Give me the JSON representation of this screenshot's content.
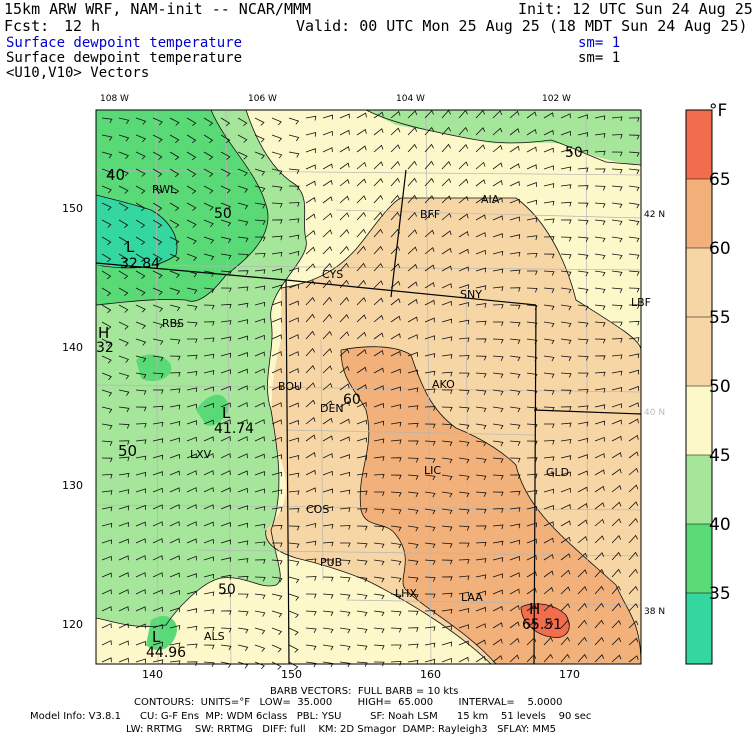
{
  "header": {
    "model": "15km ARW WRF, NAM-init -- NCAR/MMM",
    "init": "Init: 12 UTC Sun 24 Aug 25",
    "fcst_label": "Fcst:",
    "fcst_value": "12 h",
    "valid": "Valid: 00 UTC Mon 25 Aug 25 (18 MDT Sun 24 Aug 25)",
    "field1": "Surface dewpoint temperature",
    "field1_sm": "sm= 1",
    "field2": "Surface dewpoint temperature",
    "field2_sm": "sm= 1",
    "field3": "<U10,V10> Vectors"
  },
  "colors": {
    "title_blue": "#0000cc",
    "band_35_40": "#35d7a0",
    "band_40_45": "#5ad977",
    "band_45_50": "#a6e69b",
    "band_50_55": "#fdf8c9",
    "band_55_60": "#f7d6a6",
    "band_60_65": "#f2b07a",
    "band_65_up": "#f26d4e"
  },
  "map": {
    "lon_labels": [
      "108 W",
      "106 W",
      "104 W",
      "102 W"
    ],
    "lat_labels": [
      "42 N",
      "40 N",
      "38 N"
    ],
    "x_ticks": [
      "140",
      "150",
      "160",
      "170"
    ],
    "y_ticks": [
      "150",
      "140",
      "130",
      "120"
    ],
    "contour_labels": [
      "40",
      "50",
      "50",
      "50",
      "60",
      "50",
      "50"
    ],
    "extrema": [
      {
        "type": "L",
        "value": "32.84"
      },
      {
        "type": "H",
        "value": "32"
      },
      {
        "type": "L",
        "value": "41.74"
      },
      {
        "type": "L",
        "value": "44.96"
      },
      {
        "type": "H",
        "value": "65.51"
      }
    ],
    "stations": [
      "RWL",
      "BFF",
      "AIA",
      "CYS",
      "SNY",
      "LBF",
      "RBS",
      "AKO",
      "BOU",
      "DEN",
      "LXV",
      "LIC",
      "GLD",
      "COS",
      "PUB",
      "LHX",
      "LAA",
      "ALS"
    ]
  },
  "colorbar": {
    "unit": "°F",
    "ticks": [
      "65",
      "60",
      "55",
      "50",
      "45",
      "40",
      "35"
    ]
  },
  "footer": {
    "line1": "BARB VECTORS:  FULL BARB = 10 kts",
    "line2": "CONTOURS:  UNITS=°F   LOW=  35.000        HIGH=  65.000        INTERVAL=    5.0000",
    "line3": "Model Info: V3.8.1      CU: G-F Ens  MP: WDM 6class   PBL: YSU         SF: Noah LSM      15 km    51 levels    90 sec",
    "line4": "LW: RRTMG    SW: RRTMG   DIFF: full    KM: 2D Smagor  DAMP: Rayleigh3   SFLAY: MM5"
  }
}
